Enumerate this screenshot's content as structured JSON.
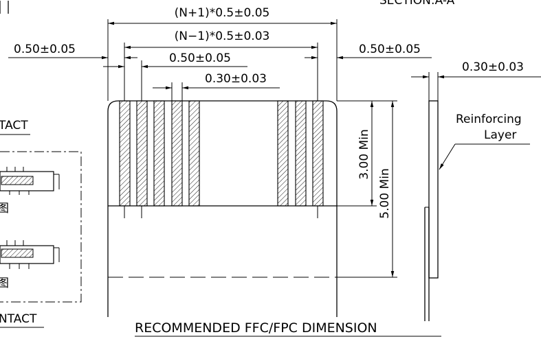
{
  "section_label": "SECTION:A-A",
  "dimensions": {
    "total_width": "(N+1)*0.5±0.05",
    "pitch_span": "(N−1)*0.5±0.03",
    "edge_left": "0.50±0.05",
    "edge_right": "0.50±0.05",
    "pitch": "0.50±0.05",
    "contact_width": "0.30±0.03",
    "thickness": "0.30±0.03",
    "contact_length": "3.00 Min",
    "stiffener_length": "5.00 Min"
  },
  "side_view": {
    "reinforcing_label_line1": "Reinforcing",
    "reinforcing_label_line2": "Layer"
  },
  "left_panel": {
    "contact_label_top": "TACT",
    "contact_label_bottom": "NTACT",
    "figure_label_top": "图",
    "figure_label_bottom": "图"
  },
  "title": "RECOMMENDED FFC/FPC DIMENSION"
}
